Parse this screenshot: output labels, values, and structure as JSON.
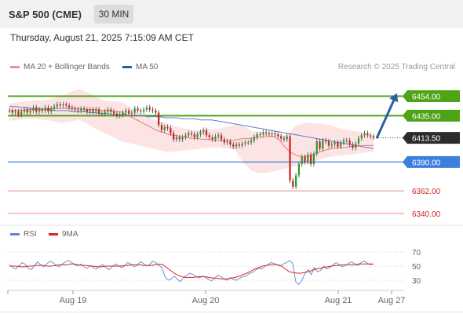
{
  "header": {
    "instrument": "S&P 500 (CME)",
    "timeframe": "30 MIN"
  },
  "datetime": "Thursday, August 21, 2025 7:15:09 AM CET",
  "legend": {
    "ma20_label": "MA 20 + Bollinger Bands",
    "ma50_label": "MA 50",
    "rsi_label": "RSI",
    "rsi_ma_label": "9MA"
  },
  "credit": "Research © 2025 Trading Central",
  "colors": {
    "up_candle": "#2f9a2f",
    "down_candle": "#cc2222",
    "bollinger_fill": "#fde4e4",
    "ma20": "#e87a7a",
    "ma50": "#5b7fc4",
    "resistance": "#4ea317",
    "pivot": "#3d7fe0",
    "support": "#ee8888",
    "rsi": "#5b86d8",
    "rsi_ma": "#dd2222",
    "arrow": "#2d5fa0"
  },
  "chart_data": [
    {
      "type": "candlestick",
      "title": "S&P 500 (CME)",
      "x_ticks": [
        "Aug 19",
        "Aug 20",
        "Aug 21",
        "Aug 27"
      ],
      "ylim": [
        6330,
        6475
      ],
      "grid": false,
      "last_price": 6413.5,
      "close": [
        6440,
        6438,
        6439,
        6436,
        6439,
        6441,
        6438,
        6440,
        6443,
        6439,
        6441,
        6440,
        6443,
        6439,
        6442,
        6444,
        6446,
        6445,
        6446,
        6445,
        6443,
        6442,
        6441,
        6440,
        6442,
        6441,
        6439,
        6441,
        6439,
        6441,
        6437,
        6437,
        6439,
        6441,
        6439,
        6437,
        6435,
        6436,
        6438,
        6440,
        6437,
        6438,
        6442,
        6440,
        6439,
        6441,
        6443,
        6441,
        6440,
        6438,
        6426,
        6421,
        6424,
        6423,
        6418,
        6412,
        6414,
        6412,
        6414,
        6416,
        6418,
        6417,
        6414,
        6417,
        6419,
        6421,
        6416,
        6414,
        6412,
        6415,
        6416,
        6412,
        6409,
        6410,
        6407,
        6405,
        6407,
        6406,
        6408,
        6409,
        6409,
        6411,
        6414,
        6417,
        6417,
        6419,
        6418,
        6417,
        6418,
        6417,
        6415,
        6413,
        6412,
        6415,
        6372,
        6366,
        6377,
        6388,
        6395,
        6390,
        6397,
        6388,
        6398,
        6410,
        6403,
        6411,
        6410,
        6406,
        6407,
        6409,
        6405,
        6409,
        6411,
        6411,
        6407,
        6404,
        6408,
        6413,
        6416,
        6418,
        6416,
        6415,
        6414
      ],
      "ma50": [
        6444,
        6444,
        6443,
        6443,
        6442,
        6442,
        6441,
        6441,
        6440,
        6440,
        6440,
        6439,
        6439,
        6439,
        6438,
        6438,
        6437,
        6437,
        6436,
        6436,
        6436,
        6435,
        6435,
        6435,
        6434,
        6434,
        6434,
        6433,
        6433,
        6433,
        6432,
        6432,
        6432,
        6431,
        6431,
        6431,
        6430,
        6429,
        6428,
        6427,
        6426,
        6425,
        6424,
        6423,
        6422,
        6421,
        6420,
        6419,
        6418,
        6417,
        6416,
        6415,
        6414,
        6413,
        6412,
        6411,
        6410,
        6409,
        6408,
        6407,
        6406,
        6405,
        6404,
        6403
      ],
      "ma20": [
        6440,
        6440,
        6440,
        6441,
        6441,
        6441,
        6441,
        6442,
        6442,
        6442,
        6442,
        6442,
        6442,
        6441,
        6441,
        6441,
        6440,
        6440,
        6439,
        6439,
        6436,
        6433,
        6430,
        6427,
        6424,
        6421,
        6419,
        6417,
        6416,
        6415,
        6414,
        6413,
        6413,
        6412,
        6412,
        6411,
        6411,
        6411,
        6411,
        6412,
        6413,
        6413,
        6414,
        6414,
        6415,
        6415,
        6411,
        6404,
        6399,
        6396,
        6395,
        6396,
        6398,
        6400,
        6402,
        6403,
        6404,
        6404,
        6405,
        6405,
        6406,
        6406,
        6406
      ],
      "bollinger_upper": [
        6447,
        6448,
        6449,
        6450,
        6450,
        6452,
        6454,
        6458,
        6461,
        6458,
        6453,
        6450,
        6449,
        6448,
        6443,
        6437,
        6434,
        6430,
        6428,
        6425,
        6423,
        6421,
        6421,
        6422,
        6422,
        6424,
        6426,
        6425,
        6420,
        6419,
        6418,
        6417,
        6416,
        6425,
        6428,
        6428,
        6427,
        6426,
        6423,
        6421,
        6420,
        6418,
        6415
      ],
      "bollinger_lower": [
        6430,
        6431,
        6432,
        6432,
        6431,
        6430,
        6428,
        6429,
        6431,
        6427,
        6422,
        6418,
        6414,
        6410,
        6408,
        6406,
        6404,
        6402,
        6400,
        6400,
        6401,
        6402,
        6403,
        6404,
        6404,
        6403,
        6402,
        6389,
        6381,
        6379,
        6380,
        6382,
        6384,
        6386,
        6388,
        6390,
        6393,
        6395,
        6396,
        6397,
        6398,
        6399,
        6400
      ],
      "levels": [
        {
          "value": 6454.0,
          "label": "6454.00",
          "kind": "resistance"
        },
        {
          "value": 6435.0,
          "label": "6435.00",
          "kind": "resistance"
        },
        {
          "value": 6390.0,
          "label": "6390.00",
          "kind": "pivot"
        },
        {
          "value": 6362.0,
          "label": "6362.00",
          "kind": "support"
        },
        {
          "value": 6340.0,
          "label": "6340.00",
          "kind": "support"
        }
      ],
      "last_price_label": "6413.50"
    },
    {
      "type": "line",
      "series": [
        {
          "name": "RSI",
          "values": [
            52,
            48,
            46,
            50,
            55,
            53,
            47,
            45,
            50,
            56,
            52,
            49,
            53,
            57,
            55,
            51,
            49,
            53,
            56,
            58,
            55,
            52,
            50,
            53,
            49,
            47,
            51,
            48,
            46,
            50,
            52,
            48,
            45,
            49,
            53,
            51,
            48,
            50,
            55,
            53,
            49,
            51,
            56,
            54,
            50,
            52,
            57,
            55,
            51,
            48,
            35,
            30,
            32,
            36,
            31,
            28,
            34,
            37,
            40,
            38,
            35,
            33,
            36,
            34,
            31,
            29,
            33,
            37,
            35,
            32,
            30,
            34,
            31,
            30,
            33,
            35,
            36,
            39,
            41,
            44,
            47,
            46,
            49,
            52,
            55,
            54,
            52,
            50,
            53,
            55,
            58,
            54,
            28,
            24,
            30,
            40,
            45,
            38,
            48,
            42,
            44,
            50,
            46,
            48,
            52,
            55,
            52,
            49,
            51,
            54,
            56,
            53,
            51,
            55,
            57,
            54,
            52,
            53
          ]
        },
        {
          "name": "9MA",
          "values": [
            50,
            50,
            50,
            49,
            49,
            50,
            50,
            51,
            51,
            51,
            50,
            50,
            51,
            52,
            52,
            52,
            53,
            53,
            52,
            51,
            51,
            50,
            50,
            49,
            49,
            50,
            50,
            50,
            50,
            50,
            51,
            51,
            52,
            52,
            52,
            51,
            51,
            51,
            52,
            53,
            52,
            48,
            44,
            40,
            37,
            35,
            34,
            34,
            34,
            35,
            35,
            35,
            34,
            33,
            33,
            32,
            32,
            32,
            33,
            34,
            36,
            38,
            40,
            43,
            46,
            48,
            50,
            51,
            52,
            52,
            52,
            50,
            46,
            42,
            41,
            40,
            40,
            41,
            42,
            44,
            46,
            47,
            48,
            49,
            50,
            51,
            51,
            52,
            52,
            52,
            52,
            53,
            53,
            53,
            53,
            53
          ]
        }
      ],
      "ylim": [
        20,
        80
      ],
      "y_ticks": [
        "70",
        "50",
        "30"
      ]
    }
  ]
}
